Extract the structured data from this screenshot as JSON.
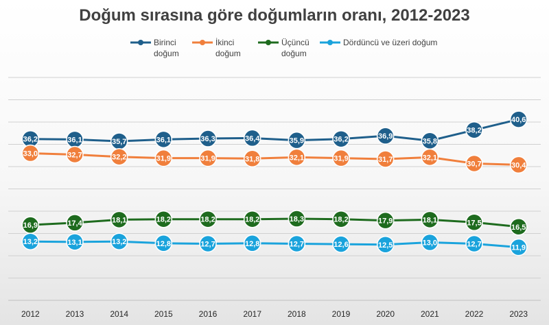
{
  "chart_data": {
    "type": "line",
    "title": "Doğum sırasına göre doğumların oranı, 2012-2023",
    "xlabel": "",
    "ylabel": "",
    "ylim": [
      0,
      50
    ],
    "grid": true,
    "legend_position": "top",
    "categories": [
      "2012",
      "2013",
      "2014",
      "2015",
      "2016",
      "2017",
      "2018",
      "2019",
      "2020",
      "2021",
      "2022",
      "2023"
    ],
    "series": [
      {
        "name": "Birinci doğum",
        "legend_lines": [
          "Birinci",
          "doğum"
        ],
        "color": "#1f5f8b",
        "values": [
          36.2,
          36.1,
          35.7,
          36.1,
          36.3,
          36.4,
          35.9,
          36.2,
          36.9,
          35.8,
          38.2,
          40.6
        ],
        "labels": [
          "36,2",
          "36,1",
          "35,7",
          "36,1",
          "36,3",
          "36,4",
          "35,9",
          "36,2",
          "36,9",
          "35,8",
          "38,2",
          "40,6"
        ]
      },
      {
        "name": "İkinci doğum",
        "legend_lines": [
          "İkinci",
          "doğum"
        ],
        "color": "#f07f3c",
        "values": [
          33.0,
          32.7,
          32.2,
          31.9,
          31.9,
          31.8,
          32.1,
          31.9,
          31.7,
          32.1,
          30.7,
          30.4
        ],
        "labels": [
          "33,0",
          "32,7",
          "32,2",
          "31,9",
          "31,9",
          "31,8",
          "32,1",
          "31,9",
          "31,7",
          "32,1",
          "30,7",
          "30,4"
        ]
      },
      {
        "name": "Üçüncü doğum",
        "legend_lines": [
          "Üçüncü",
          "doğum"
        ],
        "color": "#1e6b1e",
        "values": [
          16.9,
          17.4,
          18.1,
          18.2,
          18.2,
          18.2,
          18.3,
          18.2,
          17.9,
          18.1,
          17.5,
          16.5
        ],
        "labels": [
          "16,9",
          "17,4",
          "18,1",
          "18,2",
          "18,2",
          "18,2",
          "18,3",
          "18,2",
          "17,9",
          "18,1",
          "17,5",
          "16,5"
        ]
      },
      {
        "name": "Dördüncü ve üzeri doğum",
        "legend_lines": [
          "Dördüncü ve üzeri doğum"
        ],
        "color": "#1aa3dc",
        "values": [
          13.2,
          13.1,
          13.2,
          12.8,
          12.7,
          12.8,
          12.7,
          12.6,
          12.5,
          13.0,
          12.7,
          11.9
        ],
        "labels": [
          "13,2",
          "13,1",
          "13,2",
          "12,8",
          "12,7",
          "12,8",
          "12,7",
          "12,6",
          "12,5",
          "13,0",
          "12,7",
          "11,9"
        ]
      }
    ]
  }
}
